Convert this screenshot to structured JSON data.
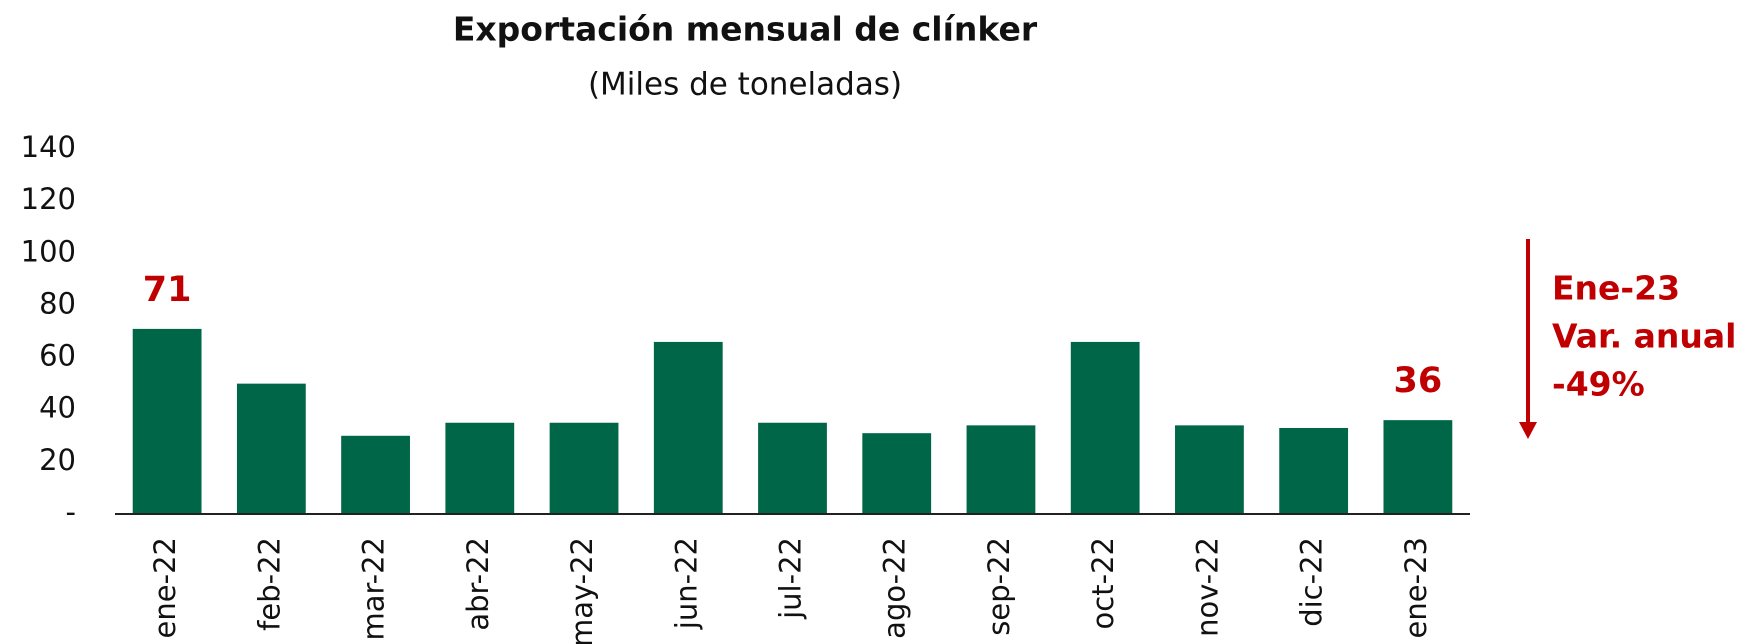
{
  "chart_data": {
    "type": "bar",
    "title": "Exportación mensual de clínker",
    "subtitle": "(Miles de toneladas)",
    "categories": [
      "ene-22",
      "feb-22",
      "mar-22",
      "abr-22",
      "may-22",
      "jun-22",
      "jul-22",
      "ago-22",
      "sep-22",
      "oct-22",
      "nov-22",
      "dic-22",
      "ene-23"
    ],
    "values": [
      71,
      50,
      30,
      35,
      35,
      66,
      35,
      31,
      34,
      66,
      34,
      33,
      36
    ],
    "value_labels": [
      "71",
      null,
      null,
      null,
      null,
      null,
      null,
      null,
      null,
      null,
      null,
      null,
      "36"
    ],
    "color": "#006648",
    "label_color": "#c00000",
    "ylim": [
      0,
      140
    ],
    "yticks": [
      {
        "value": 0,
        "label": "-"
      },
      20,
      40,
      60,
      80,
      100,
      120,
      140
    ],
    "grid": false,
    "annotation": [
      "Ene-23",
      "Var. anual",
      "-49%"
    ]
  }
}
